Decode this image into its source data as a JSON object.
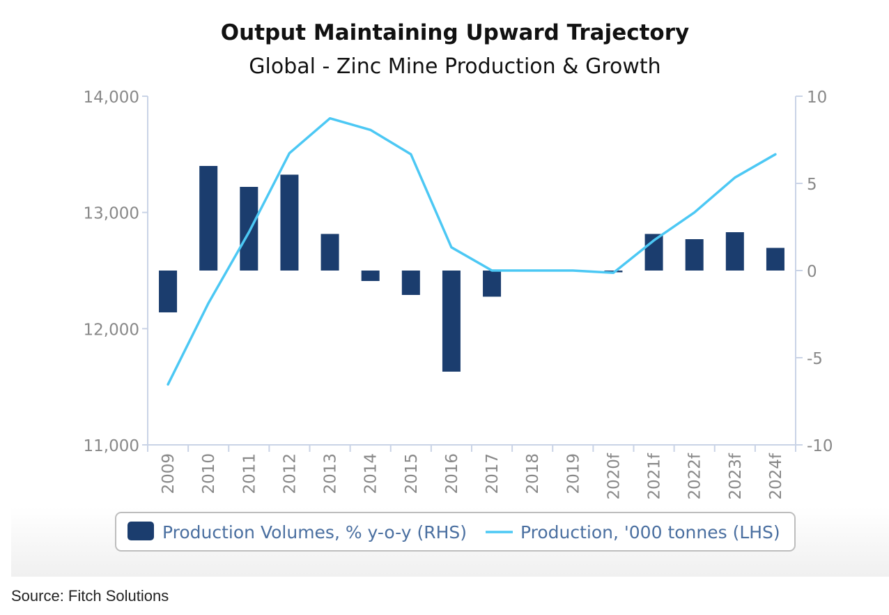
{
  "chart_data": {
    "type": "bar+line",
    "title": "Output Maintaining Upward Trajectory",
    "subtitle": "Global - Zinc Mine Production & Growth",
    "categories": [
      "2009",
      "2010",
      "2011",
      "2012",
      "2013",
      "2014",
      "2015",
      "2016",
      "2017",
      "2018",
      "2019",
      "2020f",
      "2021f",
      "2022f",
      "2023f",
      "2024f"
    ],
    "series": [
      {
        "name": "Production Volumes, % y-o-y (RHS)",
        "kind": "bar",
        "axis": "right",
        "color": "#1b3d6e",
        "values": [
          -2.4,
          6.0,
          4.8,
          5.5,
          2.1,
          -0.6,
          -1.4,
          -5.8,
          -1.5,
          0,
          0,
          -0.1,
          2.1,
          1.8,
          2.2,
          1.3
        ]
      },
      {
        "name": "Production, '000 tonnes (LHS)",
        "kind": "line",
        "axis": "left",
        "color": "#4cc8f4",
        "values": [
          11520,
          12220,
          12830,
          13510,
          13810,
          13710,
          13500,
          12700,
          12500,
          12500,
          12500,
          12480,
          12760,
          13000,
          13300,
          13500
        ]
      }
    ],
    "y_left": {
      "min": 11000,
      "max": 14000,
      "ticks": [
        "11,000",
        "12,000",
        "13,000",
        "14,000"
      ]
    },
    "y_right": {
      "min": -10,
      "max": 10,
      "ticks": [
        "-10",
        "-5",
        "0",
        "5",
        "10"
      ]
    }
  },
  "source": "Source: Fitch Solutions"
}
